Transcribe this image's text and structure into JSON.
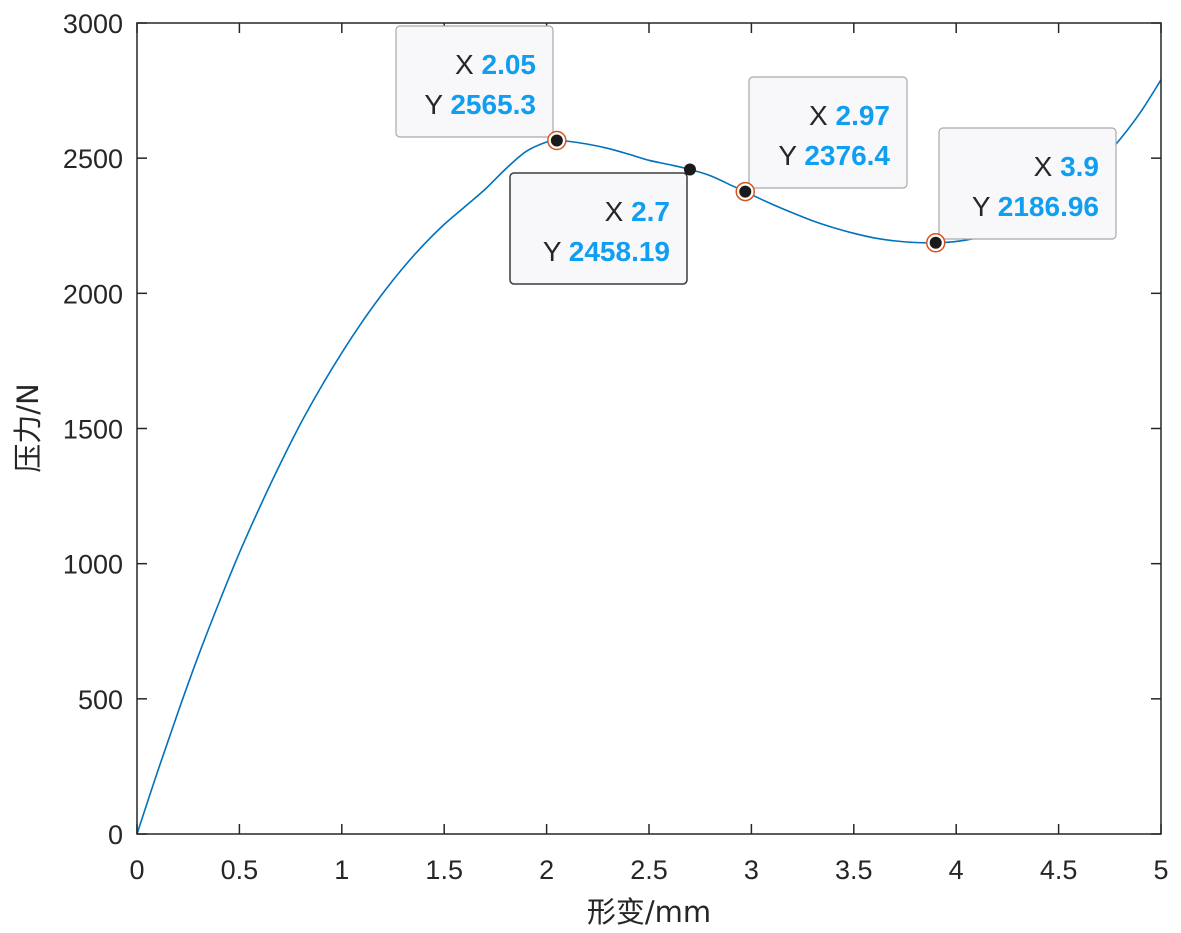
{
  "chart_data": {
    "type": "line",
    "title": "",
    "xlabel": "形变/mm",
    "ylabel": "压力/N",
    "xlim": [
      0,
      5
    ],
    "ylim": [
      0,
      3000
    ],
    "x_ticks": [
      "0",
      "0.5",
      "1",
      "1.5",
      "2",
      "2.5",
      "3",
      "3.5",
      "4",
      "4.5",
      "5"
    ],
    "y_ticks": [
      "0",
      "500",
      "1000",
      "1500",
      "2000",
      "2500",
      "3000"
    ],
    "grid": false,
    "line_color": "#0072bd",
    "series": [
      {
        "x": [
          0,
          0.1,
          0.2,
          0.3,
          0.4,
          0.5,
          0.6,
          0.7,
          0.8,
          0.9,
          1.0,
          1.1,
          1.2,
          1.3,
          1.4,
          1.5,
          1.6,
          1.7,
          1.8,
          1.9,
          2.0,
          2.05,
          2.1,
          2.2,
          2.3,
          2.4,
          2.5,
          2.6,
          2.7,
          2.8,
          2.9,
          2.97,
          3.0,
          3.1,
          3.2,
          3.3,
          3.4,
          3.5,
          3.6,
          3.7,
          3.8,
          3.9,
          4.0,
          4.1,
          4.2,
          4.3,
          4.4,
          4.5,
          4.6,
          4.7,
          4.8,
          4.9,
          5.0
        ],
        "y": [
          0,
          230,
          450,
          660,
          855,
          1040,
          1210,
          1370,
          1520,
          1655,
          1780,
          1895,
          2000,
          2095,
          2180,
          2255,
          2320,
          2385,
          2460,
          2525,
          2560,
          2565.3,
          2563,
          2552,
          2536,
          2515,
          2492,
          2476,
          2458.19,
          2435,
          2400,
          2376.4,
          2365,
          2330,
          2298,
          2268,
          2243,
          2222,
          2205,
          2194,
          2188,
          2186.96,
          2192,
          2205,
          2225,
          2255,
          2295,
          2345,
          2410,
          2485,
          2570,
          2670,
          2790
        ]
      }
    ],
    "datatips": [
      {
        "x": 2.05,
        "y": 2565.3,
        "x_label": "X",
        "y_label": "Y",
        "x_text": "2.05",
        "y_text": "2565.3",
        "active": false
      },
      {
        "x": 2.7,
        "y": 2458.19,
        "x_label": "X",
        "y_label": "Y",
        "x_text": "2.7",
        "y_text": "2458.19",
        "active": true
      },
      {
        "x": 2.97,
        "y": 2376.4,
        "x_label": "X",
        "y_label": "Y",
        "x_text": "2.97",
        "y_text": "2376.4",
        "active": false
      },
      {
        "x": 3.9,
        "y": 2186.96,
        "x_label": "X",
        "y_label": "Y",
        "x_text": "3.9",
        "y_text": "2186.96",
        "active": false
      }
    ],
    "datatip_value_color": "#0f9ef0",
    "marker_ring_color": "#d9541a"
  }
}
